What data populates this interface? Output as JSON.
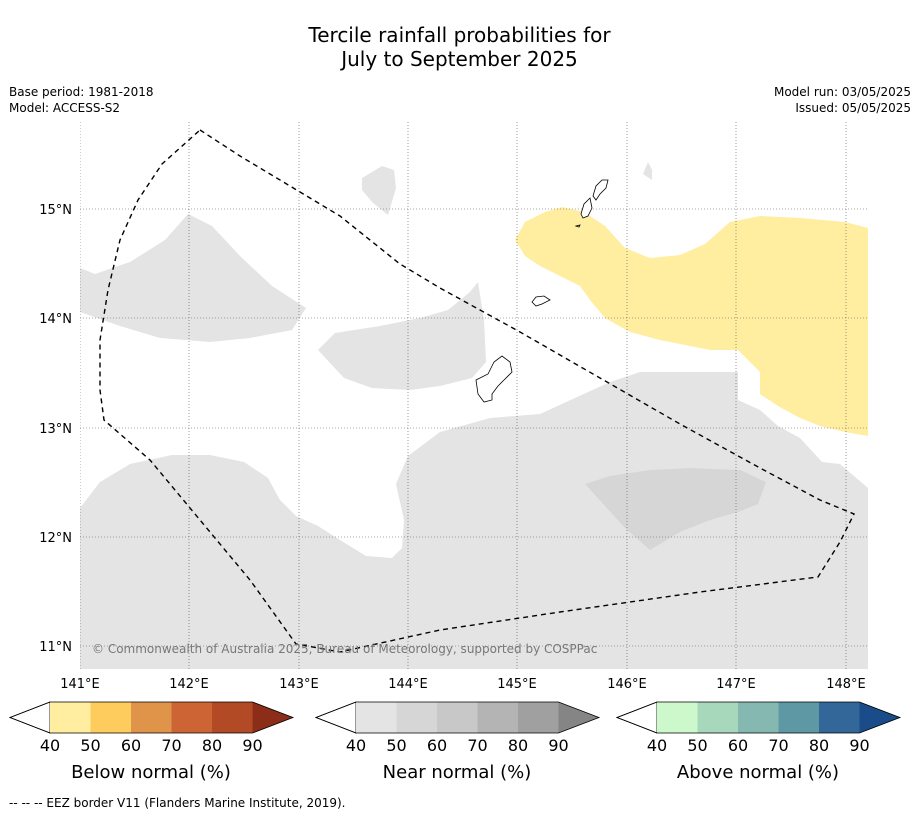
{
  "title": {
    "line1": "Tercile rainfall probabilities for",
    "line2": "July to September 2025"
  },
  "meta": {
    "base_period": "Base period: 1981-2018",
    "model": "Model: ACCESS-S2",
    "model_run": "Model run: 03/05/2025",
    "issued": "Issued: 05/05/2025"
  },
  "map": {
    "lat_labels": [
      "15°N",
      "14°N",
      "13°N",
      "12°N",
      "11°N"
    ],
    "lon_labels": [
      "141°E",
      "142°E",
      "143°E",
      "144°E",
      "145°E",
      "146°E",
      "147°E",
      "148°E"
    ],
    "copyright": "© Commonwealth of Australia 2025, Bureau of Meteorology, supported by COSPPac",
    "colors": {
      "near_normal_40": "#e4e4e4",
      "near_normal_50": "#d6d6d6",
      "below_normal_40": "#ffeda0",
      "land_outline": "#000000",
      "eez_border": "#000000"
    }
  },
  "colorbars": [
    {
      "name": "Below normal (%)",
      "ticks": [
        "40",
        "50",
        "60",
        "70",
        "80",
        "90"
      ],
      "colors": [
        "#ffeda0",
        "#fecc5c",
        "#e0944a",
        "#cc6533",
        "#b34a26",
        "#8c2d1a"
      ]
    },
    {
      "name": "Near normal (%)",
      "ticks": [
        "40",
        "50",
        "60",
        "70",
        "80",
        "90"
      ],
      "colors": [
        "#e4e4e4",
        "#d6d6d6",
        "#c8c8c8",
        "#b4b4b4",
        "#a0a0a0",
        "#858585"
      ]
    },
    {
      "name": "Above normal (%)",
      "ticks": [
        "40",
        "50",
        "60",
        "70",
        "80",
        "90"
      ],
      "colors": [
        "#ccf8cc",
        "#a8d8bc",
        "#84b8b0",
        "#5e98a4",
        "#336699",
        "#194c88"
      ]
    }
  ],
  "footnote": "--  --  -- EEZ border V11 (Flanders Marine Institute, 2019)."
}
